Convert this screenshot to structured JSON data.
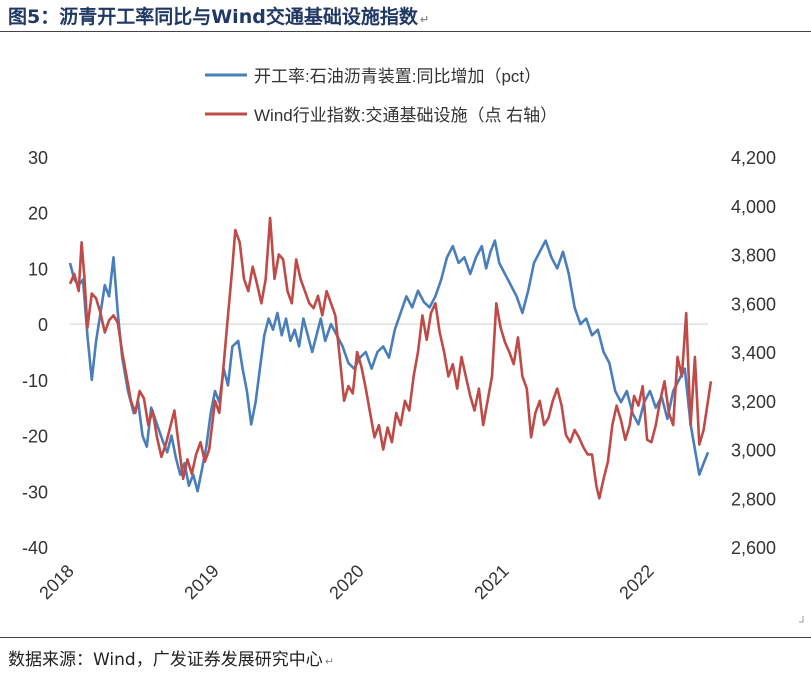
{
  "figure": {
    "title": "图5：沥青开工率同比与Wind交通基础设施指数",
    "return_mark": "↵",
    "source": "数据来源：Wind，广发证券发展研究中心"
  },
  "chart_data": {
    "type": "line",
    "x_ticks": [
      "2018",
      "2019",
      "2020",
      "2021",
      "2022"
    ],
    "x_range": [
      2018.0,
      2022.4
    ],
    "y_left": {
      "ticks": [
        "30",
        "20",
        "10",
        "0",
        "-10",
        "-20",
        "-30",
        "-40"
      ],
      "range": [
        -40,
        30
      ],
      "zero_line": true
    },
    "y_right": {
      "ticks": [
        "4,200",
        "4,000",
        "3,800",
        "3,600",
        "3,400",
        "3,200",
        "3,000",
        "2,800",
        "2,600"
      ],
      "range": [
        2600,
        4200
      ]
    },
    "series": [
      {
        "name": "开工率:石油沥青装置:同比增加（pct）",
        "color": "#4a7ebb",
        "axis": "left",
        "points": [
          [
            2018.0,
            11
          ],
          [
            2018.03,
            8
          ],
          [
            2018.06,
            7
          ],
          [
            2018.09,
            8
          ],
          [
            2018.12,
            -2
          ],
          [
            2018.15,
            -10
          ],
          [
            2018.18,
            -3
          ],
          [
            2018.21,
            2
          ],
          [
            2018.24,
            7
          ],
          [
            2018.27,
            5
          ],
          [
            2018.3,
            12
          ],
          [
            2018.33,
            2
          ],
          [
            2018.36,
            -6
          ],
          [
            2018.4,
            -12
          ],
          [
            2018.44,
            -16
          ],
          [
            2018.47,
            -14
          ],
          [
            2018.5,
            -20
          ],
          [
            2018.53,
            -22
          ],
          [
            2018.56,
            -15
          ],
          [
            2018.6,
            -18
          ],
          [
            2018.64,
            -21
          ],
          [
            2018.67,
            -23
          ],
          [
            2018.7,
            -20
          ],
          [
            2018.73,
            -24
          ],
          [
            2018.76,
            -27
          ],
          [
            2018.79,
            -25
          ],
          [
            2018.82,
            -29
          ],
          [
            2018.85,
            -27
          ],
          [
            2018.88,
            -30
          ],
          [
            2018.91,
            -26
          ],
          [
            2018.94,
            -22
          ],
          [
            2018.97,
            -16
          ],
          [
            2019.0,
            -12
          ],
          [
            2019.03,
            -14
          ],
          [
            2019.06,
            -8
          ],
          [
            2019.09,
            -11
          ],
          [
            2019.12,
            -4
          ],
          [
            2019.16,
            -3
          ],
          [
            2019.19,
            -8
          ],
          [
            2019.22,
            -12
          ],
          [
            2019.25,
            -18
          ],
          [
            2019.28,
            -14
          ],
          [
            2019.31,
            -8
          ],
          [
            2019.34,
            -2
          ],
          [
            2019.37,
            1
          ],
          [
            2019.4,
            -1
          ],
          [
            2019.43,
            2
          ],
          [
            2019.46,
            -2
          ],
          [
            2019.49,
            1
          ],
          [
            2019.52,
            -3
          ],
          [
            2019.55,
            -1
          ],
          [
            2019.58,
            -4
          ],
          [
            2019.61,
            1
          ],
          [
            2019.64,
            -2
          ],
          [
            2019.67,
            -5
          ],
          [
            2019.7,
            -2
          ],
          [
            2019.73,
            1
          ],
          [
            2019.76,
            -3
          ],
          [
            2019.8,
            0
          ],
          [
            2019.84,
            -2
          ],
          [
            2019.88,
            -4
          ],
          [
            2019.92,
            -7
          ],
          [
            2019.96,
            -8
          ],
          [
            2020.0,
            -6
          ],
          [
            2020.04,
            -5
          ],
          [
            2020.08,
            -8
          ],
          [
            2020.12,
            -5
          ],
          [
            2020.16,
            -4
          ],
          [
            2020.2,
            -6
          ],
          [
            2020.24,
            -1
          ],
          [
            2020.28,
            2
          ],
          [
            2020.32,
            5
          ],
          [
            2020.36,
            3
          ],
          [
            2020.4,
            6
          ],
          [
            2020.44,
            4
          ],
          [
            2020.48,
            3
          ],
          [
            2020.52,
            5
          ],
          [
            2020.56,
            8
          ],
          [
            2020.6,
            12
          ],
          [
            2020.64,
            14
          ],
          [
            2020.68,
            11
          ],
          [
            2020.72,
            12
          ],
          [
            2020.76,
            9
          ],
          [
            2020.8,
            12
          ],
          [
            2020.84,
            14
          ],
          [
            2020.87,
            10
          ],
          [
            2020.9,
            13
          ],
          [
            2020.93,
            15
          ],
          [
            2020.96,
            11
          ],
          [
            2021.0,
            9
          ],
          [
            2021.04,
            7
          ],
          [
            2021.08,
            5
          ],
          [
            2021.12,
            2
          ],
          [
            2021.16,
            6
          ],
          [
            2021.2,
            11
          ],
          [
            2021.24,
            13
          ],
          [
            2021.28,
            15
          ],
          [
            2021.32,
            12
          ],
          [
            2021.36,
            10
          ],
          [
            2021.4,
            13
          ],
          [
            2021.44,
            9
          ],
          [
            2021.48,
            3
          ],
          [
            2021.52,
            0
          ],
          [
            2021.56,
            1
          ],
          [
            2021.6,
            -2
          ],
          [
            2021.64,
            -1
          ],
          [
            2021.68,
            -5
          ],
          [
            2021.72,
            -7
          ],
          [
            2021.76,
            -12
          ],
          [
            2021.8,
            -14
          ],
          [
            2021.84,
            -12
          ],
          [
            2021.88,
            -16
          ],
          [
            2021.92,
            -18
          ],
          [
            2021.96,
            -14
          ],
          [
            2022.0,
            -12
          ],
          [
            2022.04,
            -15
          ],
          [
            2022.08,
            -13
          ],
          [
            2022.12,
            -17
          ],
          [
            2022.16,
            -12
          ],
          [
            2022.2,
            -10
          ],
          [
            2022.24,
            -8
          ],
          [
            2022.28,
            -18
          ],
          [
            2022.32,
            -24
          ],
          [
            2022.34,
            -27
          ],
          [
            2022.37,
            -25
          ],
          [
            2022.4,
            -23
          ]
        ]
      },
      {
        "name": "Wind行业指数:交通基础设施（点 右轴）",
        "color": "#be4b48",
        "axis": "right",
        "points": [
          [
            2018.0,
            3680
          ],
          [
            2018.03,
            3720
          ],
          [
            2018.06,
            3650
          ],
          [
            2018.08,
            3850
          ],
          [
            2018.1,
            3700
          ],
          [
            2018.12,
            3500
          ],
          [
            2018.15,
            3640
          ],
          [
            2018.18,
            3620
          ],
          [
            2018.21,
            3560
          ],
          [
            2018.24,
            3480
          ],
          [
            2018.27,
            3530
          ],
          [
            2018.3,
            3550
          ],
          [
            2018.33,
            3520
          ],
          [
            2018.36,
            3400
          ],
          [
            2018.39,
            3300
          ],
          [
            2018.42,
            3200
          ],
          [
            2018.45,
            3150
          ],
          [
            2018.48,
            3240
          ],
          [
            2018.51,
            3210
          ],
          [
            2018.54,
            3100
          ],
          [
            2018.57,
            3160
          ],
          [
            2018.6,
            3050
          ],
          [
            2018.63,
            2970
          ],
          [
            2018.66,
            3020
          ],
          [
            2018.69,
            3090
          ],
          [
            2018.72,
            3160
          ],
          [
            2018.75,
            3020
          ],
          [
            2018.78,
            2880
          ],
          [
            2018.81,
            2960
          ],
          [
            2018.84,
            2900
          ],
          [
            2018.87,
            2980
          ],
          [
            2018.9,
            3030
          ],
          [
            2018.93,
            2950
          ],
          [
            2018.96,
            3000
          ],
          [
            2019.0,
            3200
          ],
          [
            2019.03,
            3150
          ],
          [
            2019.06,
            3350
          ],
          [
            2019.09,
            3550
          ],
          [
            2019.12,
            3750
          ],
          [
            2019.14,
            3900
          ],
          [
            2019.17,
            3850
          ],
          [
            2019.2,
            3700
          ],
          [
            2019.23,
            3650
          ],
          [
            2019.26,
            3750
          ],
          [
            2019.29,
            3680
          ],
          [
            2019.32,
            3600
          ],
          [
            2019.35,
            3700
          ],
          [
            2019.38,
            3950
          ],
          [
            2019.41,
            3700
          ],
          [
            2019.44,
            3800
          ],
          [
            2019.47,
            3780
          ],
          [
            2019.5,
            3650
          ],
          [
            2019.53,
            3600
          ],
          [
            2019.56,
            3780
          ],
          [
            2019.59,
            3700
          ],
          [
            2019.62,
            3650
          ],
          [
            2019.65,
            3600
          ],
          [
            2019.68,
            3580
          ],
          [
            2019.71,
            3630
          ],
          [
            2019.74,
            3550
          ],
          [
            2019.77,
            3650
          ],
          [
            2019.8,
            3600
          ],
          [
            2019.83,
            3550
          ],
          [
            2019.86,
            3380
          ],
          [
            2019.89,
            3200
          ],
          [
            2019.92,
            3260
          ],
          [
            2019.95,
            3230
          ],
          [
            2019.98,
            3400
          ],
          [
            2020.01,
            3340
          ],
          [
            2020.04,
            3250
          ],
          [
            2020.07,
            3150
          ],
          [
            2020.1,
            3050
          ],
          [
            2020.13,
            3100
          ],
          [
            2020.16,
            3000
          ],
          [
            2020.19,
            3090
          ],
          [
            2020.22,
            3030
          ],
          [
            2020.25,
            3150
          ],
          [
            2020.28,
            3100
          ],
          [
            2020.31,
            3200
          ],
          [
            2020.34,
            3160
          ],
          [
            2020.37,
            3300
          ],
          [
            2020.4,
            3400
          ],
          [
            2020.43,
            3550
          ],
          [
            2020.46,
            3450
          ],
          [
            2020.49,
            3560
          ],
          [
            2020.52,
            3600
          ],
          [
            2020.55,
            3480
          ],
          [
            2020.58,
            3400
          ],
          [
            2020.61,
            3300
          ],
          [
            2020.64,
            3350
          ],
          [
            2020.67,
            3250
          ],
          [
            2020.7,
            3380
          ],
          [
            2020.73,
            3300
          ],
          [
            2020.76,
            3220
          ],
          [
            2020.79,
            3160
          ],
          [
            2020.82,
            3250
          ],
          [
            2020.85,
            3100
          ],
          [
            2020.88,
            3200
          ],
          [
            2020.91,
            3300
          ],
          [
            2020.94,
            3600
          ],
          [
            2020.97,
            3500
          ],
          [
            2021.0,
            3440
          ],
          [
            2021.03,
            3400
          ],
          [
            2021.06,
            3350
          ],
          [
            2021.09,
            3460
          ],
          [
            2021.12,
            3300
          ],
          [
            2021.15,
            3250
          ],
          [
            2021.18,
            3050
          ],
          [
            2021.21,
            3150
          ],
          [
            2021.24,
            3200
          ],
          [
            2021.27,
            3100
          ],
          [
            2021.3,
            3130
          ],
          [
            2021.33,
            3200
          ],
          [
            2021.36,
            3250
          ],
          [
            2021.39,
            3180
          ],
          [
            2021.42,
            3060
          ],
          [
            2021.45,
            3030
          ],
          [
            2021.48,
            3080
          ],
          [
            2021.51,
            3050
          ],
          [
            2021.54,
            3010
          ],
          [
            2021.57,
            2980
          ],
          [
            2021.6,
            2980
          ],
          [
            2021.63,
            2850
          ],
          [
            2021.65,
            2800
          ],
          [
            2021.68,
            2880
          ],
          [
            2021.71,
            2950
          ],
          [
            2021.74,
            3100
          ],
          [
            2021.77,
            3180
          ],
          [
            2021.8,
            3120
          ],
          [
            2021.83,
            3040
          ],
          [
            2021.86,
            3100
          ],
          [
            2021.89,
            3220
          ],
          [
            2021.92,
            3180
          ],
          [
            2021.95,
            3260
          ],
          [
            2021.98,
            3040
          ],
          [
            2022.01,
            3030
          ],
          [
            2022.04,
            3100
          ],
          [
            2022.07,
            3200
          ],
          [
            2022.1,
            3280
          ],
          [
            2022.13,
            3150
          ],
          [
            2022.16,
            3100
          ],
          [
            2022.19,
            3380
          ],
          [
            2022.22,
            3300
          ],
          [
            2022.25,
            3560
          ],
          [
            2022.28,
            3100
          ],
          [
            2022.31,
            3380
          ],
          [
            2022.34,
            3020
          ],
          [
            2022.37,
            3080
          ],
          [
            2022.4,
            3200
          ],
          [
            2022.42,
            3280
          ]
        ]
      }
    ]
  }
}
